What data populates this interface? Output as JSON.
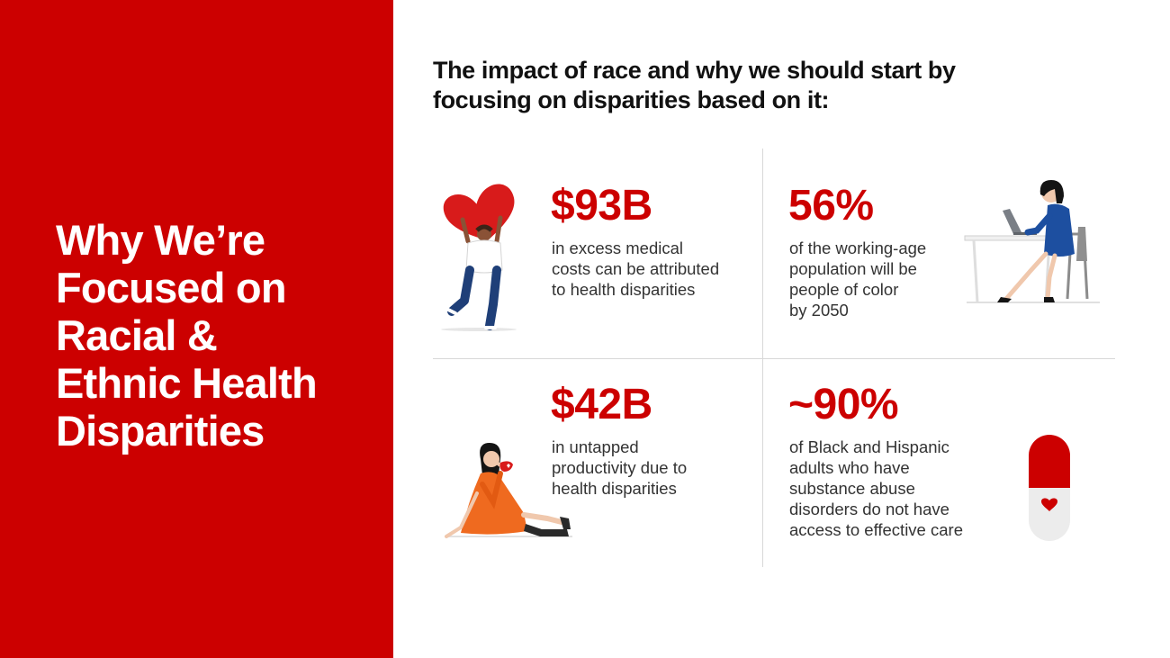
{
  "left_panel": {
    "title": "Why We’re\nFocused on\nRacial &\nEthnic Health\nDisparities"
  },
  "heading": "The impact of race and why we should start by\nfocusing on disparities based on it:",
  "stats": [
    {
      "value": "$93B",
      "description": "in excess medical\ncosts can be attributed\nto health disparities",
      "illustration": "person-holding-heart-illustration"
    },
    {
      "value": "56%",
      "description": "of the working-age\npopulation will be\npeople of color\nby 2050",
      "illustration": "woman-at-laptop-illustration"
    },
    {
      "value": "$42B",
      "description": "in untapped\nproductivity due to\nhealth disparities",
      "illustration": "woman-sitting-with-cup-illustration"
    },
    {
      "value": "~90%",
      "description": "of Black and Hispanic\nadults who have\nsubstance abuse\ndisorders do not have\naccess to effective care",
      "illustration": "capsule-pill-illustration"
    }
  ],
  "colors": {
    "brand_red": "#cc0000",
    "text_dark": "#111111",
    "text_body": "#333333",
    "divider": "#d8d8d8"
  }
}
